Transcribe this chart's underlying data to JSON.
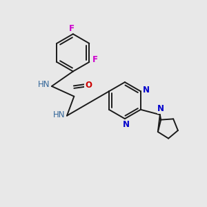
{
  "bg_color": "#e8e8e8",
  "bond_color": "#1a1a1a",
  "atom_colors": {
    "N": "#0000cc",
    "O": "#cc0000",
    "F": "#cc00cc",
    "NH": "#336699"
  },
  "figsize": [
    3.0,
    3.0
  ],
  "dpi": 100,
  "xlim": [
    0,
    10
  ],
  "ylim": [
    0,
    10
  ]
}
